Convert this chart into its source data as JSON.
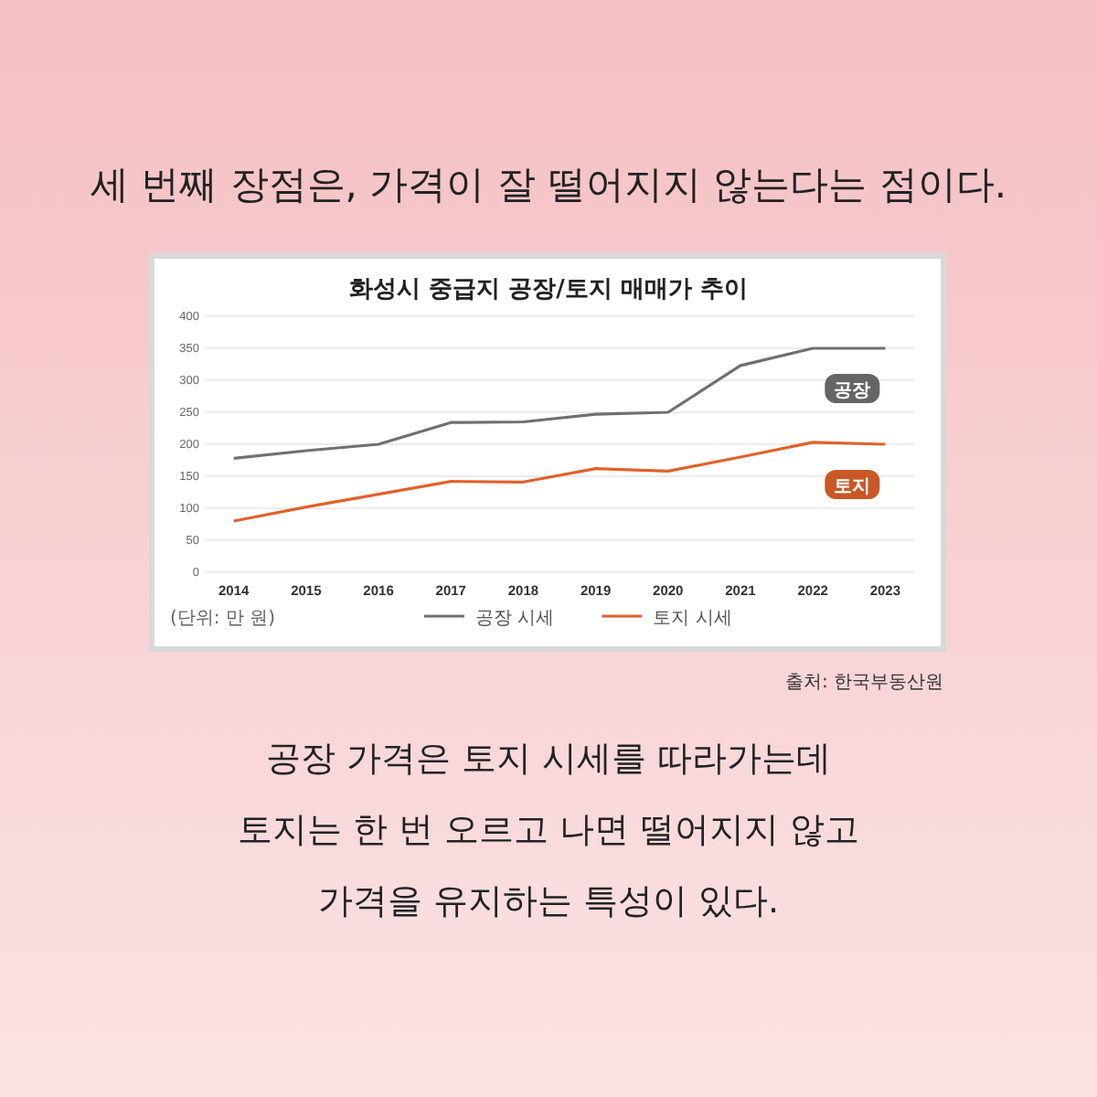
{
  "chart_data": {
    "type": "line",
    "title": "화성시 중급지 공장/토지 매매가 추이",
    "categories": [
      "2014",
      "2015",
      "2016",
      "2017",
      "2018",
      "2019",
      "2020",
      "2021",
      "2022",
      "2023"
    ],
    "series": [
      {
        "name": "공장 시세",
        "color": "#707070",
        "values": [
          178,
          190,
          200,
          234,
          235,
          247,
          250,
          323,
          350,
          350
        ]
      },
      {
        "name": "토지 시세",
        "color": "#e0622a",
        "values": [
          80,
          102,
          122,
          142,
          141,
          162,
          158,
          180,
          203,
          200
        ]
      }
    ],
    "ylim": [
      0,
      400
    ],
    "yticks": [
      0,
      50,
      100,
      150,
      200,
      250,
      300,
      350,
      400
    ],
    "grid": "y",
    "legend": "bottom",
    "marker": "none",
    "line_style": "solid",
    "annotations": [
      "세 번째 장점은, 가격이 잘 떨어지지 않는다는 점이다.",
      "(단위: 만 원)",
      "출처: 한국부동산원",
      "공장 가격은 토지 시세를 따라가는데",
      "토지는 한 번 오르고 나면 떨어지지 않고",
      "가격을 유지하는 특성이 있다.",
      "공장",
      "토지"
    ]
  }
}
